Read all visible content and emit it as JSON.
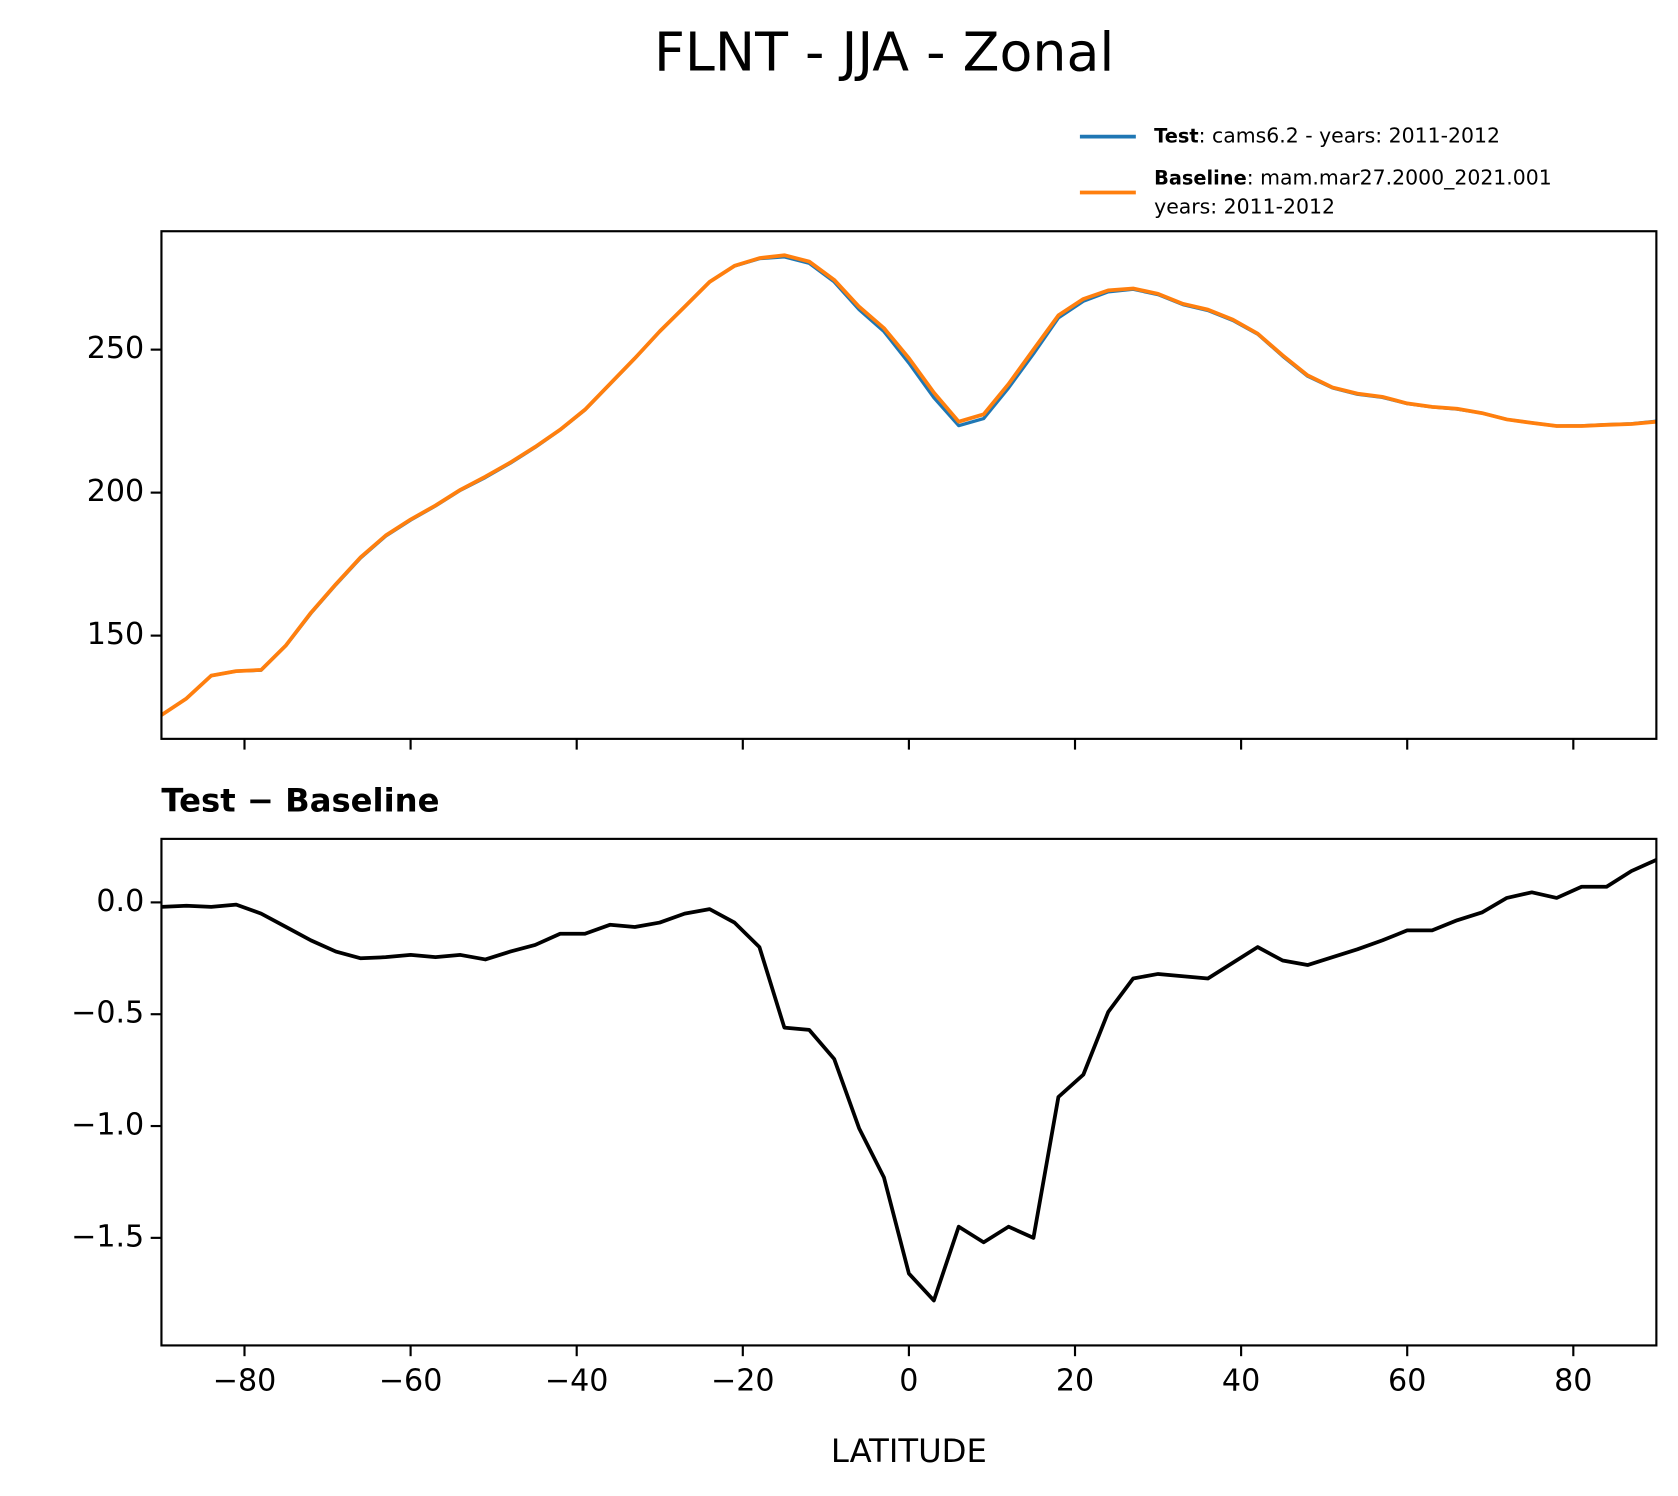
{
  "title": "FLNT - JJA - Zonal",
  "chart_data": [
    {
      "type": "line",
      "x": [
        -90,
        -87,
        -84,
        -81,
        -78,
        -75,
        -72,
        -69,
        -66,
        -63,
        -60,
        -57,
        -54,
        -51,
        -48,
        -45,
        -42,
        -39,
        -36,
        -33,
        -30,
        -27,
        -24,
        -21,
        -18,
        -15,
        -12,
        -9,
        -6,
        -3,
        0,
        3,
        6,
        9,
        12,
        15,
        18,
        21,
        24,
        27,
        30,
        33,
        36,
        39,
        42,
        45,
        48,
        51,
        54,
        57,
        60,
        63,
        66,
        69,
        72,
        75,
        78,
        81,
        84,
        87,
        90
      ],
      "series": [
        {
          "name": "Test",
          "label": ": cams6.2 - years: 2011-2012",
          "color": "#1f77b4",
          "values": [
            122.2,
            128.0,
            136.0,
            137.6,
            137.9,
            146.5,
            157.8,
            167.8,
            177.2,
            184.8,
            190.4,
            195.3,
            200.8,
            205.3,
            210.3,
            215.8,
            221.9,
            228.9,
            237.9,
            246.9,
            256.3,
            265.0,
            273.7,
            279.2,
            281.8,
            282.4,
            280.2,
            273.7,
            264.0,
            256.3,
            245.3,
            233.2,
            223.4,
            225.9,
            236.6,
            248.5,
            261.1,
            266.9,
            270.2,
            271.1,
            269.2,
            265.7,
            263.7,
            260.2,
            255.4,
            247.7,
            240.7,
            236.6,
            234.4,
            233.3,
            231.1,
            229.9,
            229.2,
            227.8,
            225.6,
            224.4,
            223.3,
            223.4,
            223.8,
            224.1,
            225.0
          ]
        },
        {
          "name": "Baseline",
          "label": [
            ": mam.mar27.2000_2021.001",
            "years: 2011-2012"
          ],
          "color": "#ff7f0e",
          "values": [
            122.2,
            128.0,
            136.0,
            137.6,
            138.0,
            146.6,
            158.0,
            168.0,
            177.4,
            185.0,
            190.6,
            195.5,
            201.0,
            205.6,
            210.5,
            216.0,
            222.0,
            229.0,
            238.0,
            247.0,
            256.4,
            265.0,
            273.7,
            279.3,
            282.0,
            283.0,
            280.8,
            274.4,
            265.0,
            257.5,
            247.0,
            235.0,
            224.8,
            227.4,
            238.0,
            250.0,
            262.0,
            267.7,
            270.7,
            271.4,
            269.5,
            266.0,
            264.0,
            260.5,
            255.6,
            248.0,
            241.0,
            236.8,
            234.6,
            233.5,
            231.2,
            230.0,
            229.3,
            227.8,
            225.6,
            224.4,
            223.3,
            223.3,
            223.7,
            224.0,
            224.8
          ]
        }
      ],
      "xlim": [
        -90,
        90
      ],
      "xticks": [
        -80,
        -60,
        -40,
        -20,
        0,
        20,
        40,
        60,
        80
      ],
      "ylim": [
        113.9,
        291.4
      ],
      "yticks": [
        150,
        200,
        250
      ]
    },
    {
      "type": "line",
      "title": "Test − Baseline",
      "xlabel": "LATITUDE",
      "x": [
        -90,
        -87,
        -84,
        -81,
        -78,
        -75,
        -72,
        -69,
        -66,
        -63,
        -60,
        -57,
        -54,
        -51,
        -48,
        -45,
        -42,
        -39,
        -36,
        -33,
        -30,
        -27,
        -24,
        -21,
        -18,
        -15,
        -12,
        -9,
        -6,
        -3,
        0,
        3,
        6,
        9,
        12,
        15,
        18,
        21,
        24,
        27,
        30,
        33,
        36,
        39,
        42,
        45,
        48,
        51,
        54,
        57,
        60,
        63,
        66,
        69,
        72,
        75,
        78,
        81,
        84,
        87,
        90
      ],
      "series": [
        {
          "color": "#000000",
          "values": [
            -0.02,
            -0.015,
            -0.02,
            -0.01,
            -0.05,
            -0.11,
            -0.17,
            -0.22,
            -0.25,
            -0.245,
            -0.235,
            -0.245,
            -0.235,
            -0.255,
            -0.22,
            -0.19,
            -0.14,
            -0.14,
            -0.1,
            -0.11,
            -0.09,
            -0.05,
            -0.03,
            -0.09,
            -0.2,
            -0.56,
            -0.57,
            -0.7,
            -1.01,
            -1.23,
            -1.66,
            -1.78,
            -1.45,
            -1.52,
            -1.45,
            -1.5,
            -0.87,
            -0.77,
            -0.49,
            -0.34,
            -0.32,
            -0.33,
            -0.34,
            -0.27,
            -0.2,
            -0.26,
            -0.28,
            -0.245,
            -0.21,
            -0.17,
            -0.125,
            -0.125,
            -0.08,
            -0.045,
            0.02,
            0.045,
            0.02,
            0.07,
            0.07,
            0.14,
            0.19
          ]
        }
      ],
      "xlim": [
        -90,
        90
      ],
      "xticks": [
        {
          "value": -80,
          "label": "−80"
        },
        {
          "value": -60,
          "label": "−60"
        },
        {
          "value": -40,
          "label": "−40"
        },
        {
          "value": -20,
          "label": "−20"
        },
        0,
        20,
        40,
        60,
        80
      ],
      "ylim": [
        -1.981,
        0.284
      ],
      "yticks": [
        {
          "value": -1.5,
          "label": "−1.5"
        },
        {
          "value": -1.0,
          "label": "−1.0"
        },
        {
          "value": -0.5,
          "label": "−0.5"
        },
        {
          "value": 0,
          "label": "0.0"
        }
      ]
    }
  ]
}
